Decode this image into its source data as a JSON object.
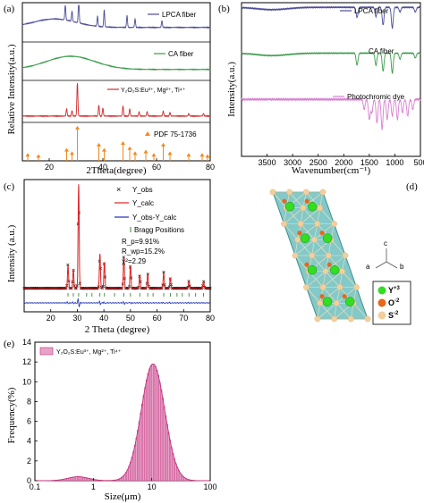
{
  "chart_data": [
    {
      "panel_label": "(a)",
      "type": "line",
      "xlabel": "2Theta(degree)",
      "ylabel": "Relative Intensity(a.u.)",
      "xlim": [
        10,
        80
      ],
      "xticks": [
        "20",
        "40",
        "60",
        "80"
      ],
      "series": [
        {
          "name": "LPCA fiber",
          "color": "#4b4b9a",
          "baseline": 0.35,
          "hump": {
            "center": 22,
            "width": 8,
            "height": 0.25
          },
          "peaks": [
            [
              26,
              0.45
            ],
            [
              28.5,
              0.3
            ],
            [
              31,
              0.7
            ],
            [
              38,
              0.3
            ],
            [
              40.5,
              0.5
            ],
            [
              49,
              0.35
            ],
            [
              52,
              0.25
            ],
            [
              62,
              0.2
            ]
          ]
        },
        {
          "name": "CA fiber",
          "color": "#3a9a4a",
          "baseline": 0.25,
          "hump": {
            "center": 28,
            "width": 9,
            "height": 0.4
          },
          "peaks": []
        },
        {
          "name": "Y₂O₂S:Eu³⁺, Mg²⁺, Ti⁴⁺",
          "color": "#d42a2a",
          "baseline": 0.1,
          "hump": {
            "center": 0,
            "width": 1,
            "height": 0
          },
          "peaks": [
            [
              26.5,
              0.2
            ],
            [
              28.5,
              0.15
            ],
            [
              30.5,
              0.95
            ],
            [
              38.5,
              0.3
            ],
            [
              40,
              0.22
            ],
            [
              47.5,
              0.28
            ],
            [
              50,
              0.2
            ],
            [
              53.5,
              0.12
            ],
            [
              56.5,
              0.12
            ],
            [
              62.5,
              0.14
            ],
            [
              65,
              0.1
            ],
            [
              72,
              0.07
            ],
            [
              77.5,
              0.07
            ]
          ]
        }
      ],
      "reference": {
        "name": "PDF 75-1736",
        "color": "#f08a1e",
        "sticks": [
          [
            12,
            0.15
          ],
          [
            16,
            0.12
          ],
          [
            26.5,
            0.3
          ],
          [
            28.5,
            0.2
          ],
          [
            30.5,
            0.95
          ],
          [
            38.5,
            0.45
          ],
          [
            40.5,
            0.3
          ],
          [
            47.5,
            0.5
          ],
          [
            50,
            0.35
          ],
          [
            52,
            0.2
          ],
          [
            56,
            0.25
          ],
          [
            59,
            0.15
          ],
          [
            62.5,
            0.45
          ],
          [
            65,
            0.2
          ],
          [
            72,
            0.15
          ],
          [
            77,
            0.15
          ],
          [
            79,
            0.12
          ]
        ]
      }
    },
    {
      "panel_label": "(b)",
      "type": "line",
      "xlabel": "Wavenumber(cm⁻¹)",
      "ylabel": "Intensity(a.u.)",
      "xlim": [
        4000,
        500
      ],
      "xticks": [
        "3500",
        "3000",
        "2500",
        "2000",
        "1500",
        "1000",
        "500"
      ],
      "series": [
        {
          "name": "LPCA fiber",
          "color": "#4b4b9a",
          "baseline": 0.9,
          "broad": [
            [
              3400,
              0.05,
              300
            ]
          ],
          "dips": [
            [
              1740,
              0.22
            ],
            [
              1370,
              0.2
            ],
            [
              1230,
              0.38
            ],
            [
              1050,
              0.45
            ],
            [
              900,
              0.1
            ],
            [
              600,
              0.1
            ]
          ]
        },
        {
          "name": "CA fiber",
          "color": "#3a9a4a",
          "baseline": 0.9,
          "broad": [
            [
              3400,
              0.06,
              300
            ]
          ],
          "dips": [
            [
              1740,
              0.3
            ],
            [
              1370,
              0.3
            ],
            [
              1230,
              0.45
            ],
            [
              1050,
              0.5
            ],
            [
              900,
              0.15
            ],
            [
              600,
              0.12
            ]
          ]
        },
        {
          "name": "Photochromic dye",
          "color": "#d87fd0",
          "baseline": 0.85,
          "broad": [],
          "dips": [
            [
              1600,
              0.15
            ],
            [
              1500,
              0.3
            ],
            [
              1450,
              0.2
            ],
            [
              1350,
              0.35
            ],
            [
              1250,
              0.45
            ],
            [
              1150,
              0.3
            ],
            [
              1050,
              0.25
            ],
            [
              950,
              0.3
            ],
            [
              850,
              0.2
            ],
            [
              750,
              0.25
            ],
            [
              650,
              0.15
            ]
          ]
        }
      ]
    },
    {
      "panel_label": "(c)",
      "type": "scatter",
      "xlabel": "2 Theta (degree)",
      "ylabel": "Intensity (a.u.)",
      "xlim": [
        10,
        80
      ],
      "xticks": [
        "20",
        "30",
        "40",
        "50",
        "60",
        "70",
        "80"
      ],
      "legend": [
        "Y_obs",
        "Y_calc",
        "Y_obs-Y_calc",
        "Bragg Positions"
      ],
      "stats": [
        "R_p=9.91%",
        "R_wp=15.2%",
        "χ²=2.29"
      ],
      "peaks": [
        [
          26.5,
          0.22
        ],
        [
          28.5,
          0.18
        ],
        [
          30.5,
          1.0
        ],
        [
          38.5,
          0.33
        ],
        [
          40.2,
          0.25
        ],
        [
          47.5,
          0.3
        ],
        [
          50,
          0.22
        ],
        [
          53.5,
          0.13
        ],
        [
          56.5,
          0.14
        ],
        [
          62.5,
          0.15
        ],
        [
          65,
          0.1
        ],
        [
          72,
          0.07
        ],
        [
          77.5,
          0.07
        ]
      ]
    },
    {
      "panel_label": "(d)",
      "type": "diagram",
      "axes": [
        "c",
        "a",
        "b"
      ],
      "legend": [
        {
          "label": "Y",
          "charge": "+3",
          "color": "#33dd22"
        },
        {
          "label": "O",
          "charge": "-2",
          "color": "#e8661a"
        },
        {
          "label": "S",
          "charge": "-2",
          "color": "#f3cf9e"
        }
      ]
    },
    {
      "panel_label": "(e)",
      "type": "bar",
      "xlabel": "Size(μm)",
      "ylabel": "Frequency(%)",
      "xscale": "log",
      "xlim": [
        0.1,
        100
      ],
      "ylim": [
        0,
        14
      ],
      "xticks": [
        "0.1",
        "1",
        "10",
        "100"
      ],
      "yticks": [
        "0",
        "2",
        "4",
        "6",
        "8",
        "10",
        "12",
        "14"
      ],
      "legend": "Y₂O₂S:Eu³⁺, Mg²⁺, Ti⁴⁺",
      "color": "#d4609c",
      "distributions": [
        {
          "center_um": 0.55,
          "sigma_log10": 0.18,
          "peak_percent": 0.4
        },
        {
          "center_um": 10.5,
          "sigma_log10": 0.2,
          "peak_percent": 11.8
        }
      ]
    }
  ]
}
